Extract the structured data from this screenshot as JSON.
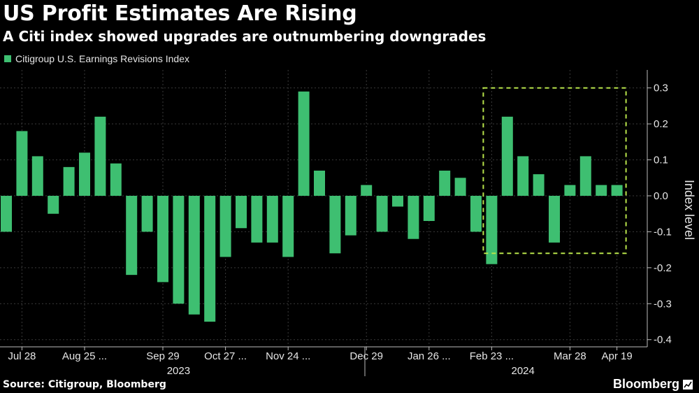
{
  "title": "US Profit Estimates Are Rising",
  "subtitle": "A Citi index showed upgrades are outnumbering downgrades",
  "source": "Source: Citigroup, Bloomberg",
  "brand": "Bloomberg",
  "colors": {
    "background": "#000000",
    "bar": "#3ebf71",
    "highlight_box": "#b7e34a",
    "grid": "#3a3a3a"
  },
  "chart_data": {
    "type": "bar",
    "title": "US Profit Estimates Are Rising",
    "legend": [
      "Citigroup U.S. Earnings Revisions Index"
    ],
    "ylabel": "Index level",
    "xlabel": "",
    "ylim": [
      -0.42,
      0.35
    ],
    "yticks": [
      -0.4,
      -0.3,
      -0.2,
      -0.1,
      0.0,
      0.1,
      0.2,
      0.3
    ],
    "ytick_labels": [
      "-0.4",
      "-0.3",
      "-0.2",
      "-0.1",
      "0.0",
      "0.1",
      "0.2",
      "0.3"
    ],
    "series": [
      {
        "name": "Citigroup U.S. Earnings Revisions Index",
        "values": [
          -0.1,
          0.18,
          0.11,
          -0.05,
          0.08,
          0.12,
          0.22,
          0.09,
          -0.22,
          -0.1,
          -0.24,
          -0.3,
          -0.33,
          -0.35,
          -0.17,
          -0.09,
          -0.13,
          -0.13,
          -0.17,
          0.29,
          0.07,
          -0.16,
          -0.11,
          0.03,
          -0.1,
          -0.03,
          -0.12,
          -0.07,
          0.07,
          0.05,
          -0.1,
          -0.19,
          0.22,
          0.11,
          0.06,
          -0.13,
          0.03,
          0.11,
          0.03,
          0.03
        ]
      }
    ],
    "x_tick_labels": [
      {
        "label": "Jul 28",
        "index": 1
      },
      {
        "label": "Aug 25 ...",
        "index": 5
      },
      {
        "label": "Sep 29",
        "index": 10
      },
      {
        "label": "Oct 27 ...",
        "index": 14
      },
      {
        "label": "Nov 24 ...",
        "index": 18
      },
      {
        "label": "Dec 29",
        "index": 23
      },
      {
        "label": "Jan 26 ...",
        "index": 27
      },
      {
        "label": "Feb 23 ...",
        "index": 31
      },
      {
        "label": "Mar 28",
        "index": 36
      },
      {
        "label": "Apr 19",
        "index": 39
      }
    ],
    "year_labels": [
      {
        "label": "2023",
        "index": 11
      },
      {
        "label": "2024",
        "index": 33
      }
    ],
    "highlight": {
      "start_index": 31,
      "end_index": 39,
      "y_top": 0.3,
      "y_bottom": -0.16
    },
    "annotation": "highlight box around recent 2024 readings"
  }
}
